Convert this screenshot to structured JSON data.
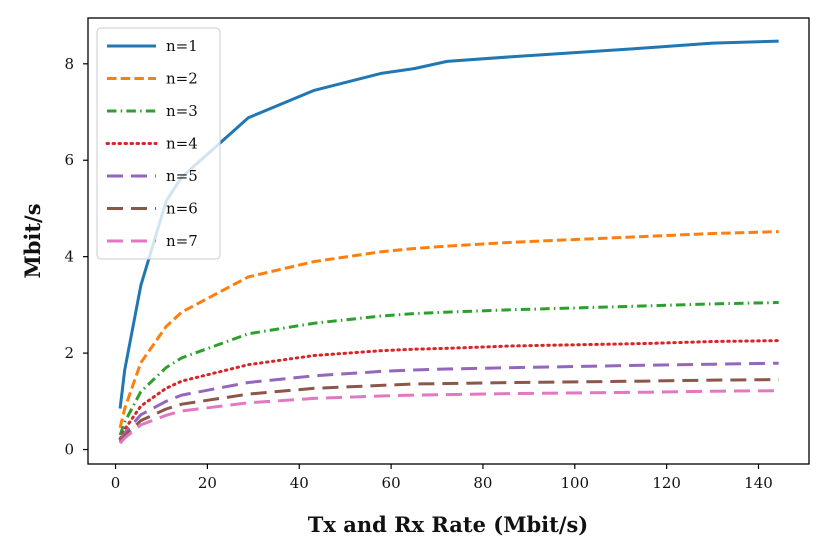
{
  "chart_data": {
    "type": "line",
    "title": "",
    "xlabel": "Tx and Rx Rate (Mbit/s)",
    "ylabel": "Mbit/s",
    "xlim": [
      -6,
      151
    ],
    "ylim": [
      -0.3,
      8.95
    ],
    "xticks": [
      0,
      20,
      40,
      60,
      80,
      100,
      120,
      140
    ],
    "yticks": [
      0,
      2,
      4,
      6,
      8
    ],
    "grid": false,
    "legend_position": "top-left",
    "x": [
      1,
      2,
      5.5,
      11,
      14.4,
      28.9,
      43.3,
      57.8,
      65,
      72.2,
      86.7,
      115.6,
      130,
      144.4
    ],
    "series": [
      {
        "name": "n=1",
        "color": "#1f77b4",
        "style": "solid",
        "values": [
          0.85,
          1.65,
          3.4,
          5.15,
          5.65,
          6.88,
          7.45,
          7.8,
          7.9,
          8.05,
          8.15,
          8.33,
          8.43,
          8.47
        ]
      },
      {
        "name": "n=2",
        "color": "#ff7f0e",
        "style": "dashed",
        "values": [
          0.45,
          0.85,
          1.8,
          2.55,
          2.85,
          3.58,
          3.9,
          4.1,
          4.17,
          4.22,
          4.3,
          4.42,
          4.48,
          4.52
        ]
      },
      {
        "name": "n=3",
        "color": "#2ca02c",
        "style": "dashdot",
        "values": [
          0.3,
          0.57,
          1.2,
          1.7,
          1.9,
          2.4,
          2.62,
          2.77,
          2.82,
          2.85,
          2.9,
          2.98,
          3.02,
          3.05
        ]
      },
      {
        "name": "n=4",
        "color": "#d62728",
        "style": "dotted",
        "values": [
          0.22,
          0.42,
          0.9,
          1.27,
          1.42,
          1.76,
          1.95,
          2.05,
          2.08,
          2.1,
          2.15,
          2.2,
          2.24,
          2.26
        ]
      },
      {
        "name": "n=5",
        "color": "#9467bd",
        "style": "longdash",
        "values": [
          0.18,
          0.34,
          0.72,
          1.0,
          1.13,
          1.39,
          1.53,
          1.62,
          1.65,
          1.67,
          1.7,
          1.75,
          1.77,
          1.79
        ]
      },
      {
        "name": "n=6",
        "color": "#8c564b",
        "style": "longdash",
        "values": [
          0.15,
          0.28,
          0.6,
          0.84,
          0.94,
          1.15,
          1.27,
          1.33,
          1.36,
          1.37,
          1.39,
          1.42,
          1.44,
          1.45
        ]
      },
      {
        "name": "n=7",
        "color": "#e377c2",
        "style": "longdash",
        "values": [
          0.13,
          0.24,
          0.51,
          0.71,
          0.8,
          0.97,
          1.06,
          1.11,
          1.13,
          1.14,
          1.16,
          1.19,
          1.21,
          1.22
        ]
      }
    ]
  }
}
